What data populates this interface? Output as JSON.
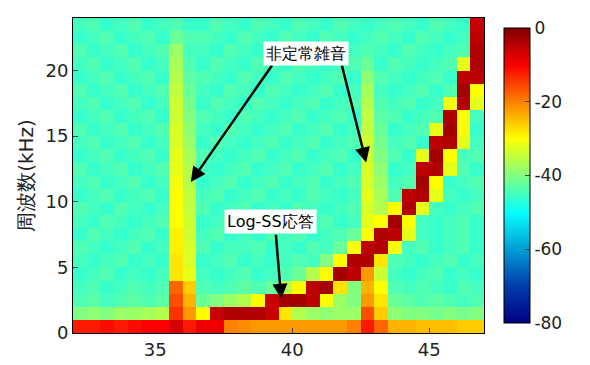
{
  "chart_data": {
    "type": "heatmap",
    "y_label": "周波数(kHz)",
    "xlim": [
      32,
      47
    ],
    "xticks": [
      35,
      40,
      45
    ],
    "ylim": [
      0,
      24
    ],
    "yticks": [
      0,
      5,
      10,
      15,
      20
    ],
    "zlim": [
      -80,
      0
    ],
    "zticks": [
      0,
      -20,
      -40,
      -60,
      -80
    ],
    "x": [
      32.25,
      32.75,
      33.25,
      33.75,
      34.25,
      34.75,
      35.25,
      35.75,
      36.25,
      36.75,
      37.25,
      37.75,
      38.25,
      38.75,
      39.25,
      39.75,
      40.25,
      40.75,
      41.25,
      41.75,
      42.25,
      42.75,
      43.25,
      43.75,
      44.25,
      44.75,
      45.25,
      45.75,
      46.25,
      46.75
    ],
    "y": [
      0.5,
      1.5,
      2.5,
      3.5,
      4.5,
      5.5,
      6.5,
      7.5,
      8.5,
      9.5,
      10.5,
      11.5,
      12.5,
      13.5,
      14.5,
      15.5,
      16.5,
      17.5,
      18.5,
      19.5,
      20.5,
      21.5,
      22.5,
      23.5
    ],
    "z": [
      [
        -12,
        -12,
        -11,
        -12,
        -11,
        -10,
        -10,
        -7,
        -12,
        -9,
        -9,
        -20,
        -21,
        -22,
        -22,
        -22,
        -22,
        -22,
        -22,
        -22,
        -20,
        -12,
        -18,
        -24,
        -24,
        -25,
        -25,
        -25,
        -26,
        -26
      ],
      [
        -40,
        -39,
        -40,
        -38,
        -38,
        -37,
        -36,
        -14,
        -22,
        -30,
        -6,
        -4,
        -4,
        -4,
        -6,
        -28,
        -36,
        -38,
        -39,
        -38,
        -38,
        -16,
        -26,
        -39,
        -40,
        -40,
        -41,
        -40,
        -41,
        -40
      ],
      [
        -44,
        -43,
        -45,
        -44,
        -43,
        -44,
        -43,
        -16,
        -24,
        -42,
        -40,
        -38,
        -36,
        -30,
        -6,
        -3,
        -3,
        -5,
        -30,
        -38,
        -40,
        -22,
        -28,
        -42,
        -43,
        -44,
        -43,
        -44,
        -45,
        -44
      ],
      [
        -45,
        -44,
        -46,
        -45,
        -44,
        -45,
        -44,
        -18,
        -26,
        -44,
        -45,
        -44,
        -43,
        -44,
        -42,
        -36,
        -30,
        -5,
        -3,
        -28,
        -40,
        -24,
        -30,
        -44,
        -45,
        -44,
        -45,
        -46,
        -44,
        -45
      ],
      [
        -46,
        -45,
        -44,
        -46,
        -45,
        -46,
        -45,
        -28,
        -32,
        -45,
        -46,
        -45,
        -44,
        -46,
        -45,
        -44,
        -42,
        -36,
        -30,
        -3,
        -5,
        -22,
        -34,
        -45,
        -46,
        -45,
        -44,
        -46,
        -45,
        -46
      ],
      [
        -45,
        -46,
        -45,
        -44,
        -46,
        -45,
        -46,
        -28,
        -33,
        -46,
        -45,
        -44,
        -46,
        -45,
        -46,
        -45,
        -44,
        -45,
        -40,
        -30,
        -4,
        -4,
        -28,
        -44,
        -45,
        -46,
        -45,
        -44,
        -46,
        -45
      ],
      [
        -44,
        -45,
        -46,
        -45,
        -44,
        -46,
        -45,
        -29,
        -33,
        -44,
        -46,
        -45,
        -45,
        -44,
        -46,
        -45,
        -46,
        -44,
        -45,
        -42,
        -30,
        -5,
        -4,
        -30,
        -45,
        -44,
        -46,
        -45,
        -44,
        -46
      ],
      [
        -46,
        -44,
        -45,
        -46,
        -45,
        -44,
        -46,
        -29,
        -34,
        -45,
        -44,
        -46,
        -45,
        -46,
        -44,
        -45,
        -44,
        -46,
        -45,
        -44,
        -42,
        -30,
        -4,
        -5,
        -32,
        -45,
        -46,
        -45,
        -44,
        -46
      ],
      [
        -45,
        -46,
        -44,
        -45,
        -46,
        -45,
        -44,
        -30,
        -34,
        -46,
        -45,
        -44,
        -46,
        -45,
        -45,
        -44,
        -46,
        -45,
        -44,
        -46,
        -45,
        -32,
        -30,
        -3,
        -30,
        -45,
        -46,
        -45,
        -44,
        -46
      ],
      [
        -44,
        -45,
        -46,
        -44,
        -45,
        -46,
        -45,
        -30,
        -35,
        -44,
        -46,
        -45,
        -44,
        -46,
        -45,
        -46,
        -44,
        -45,
        -46,
        -45,
        -44,
        -33,
        -36,
        -30,
        -4,
        -32,
        -45,
        -46,
        -45,
        -44
      ],
      [
        -46,
        -45,
        -44,
        -46,
        -45,
        -44,
        -46,
        -30,
        -35,
        -45,
        -44,
        -46,
        -45,
        -44,
        -46,
        -45,
        -46,
        -44,
        -45,
        -46,
        -45,
        -32,
        -37,
        -44,
        -5,
        -4,
        -32,
        -45,
        -46,
        -45
      ],
      [
        -45,
        -44,
        -46,
        -45,
        -44,
        -46,
        -45,
        -31,
        -36,
        -46,
        -45,
        -44,
        -46,
        -45,
        -44,
        -46,
        -45,
        -44,
        -46,
        -45,
        -44,
        -33,
        -38,
        -45,
        -44,
        -3,
        -30,
        -46,
        -45,
        -44
      ],
      [
        -44,
        -46,
        -45,
        -44,
        -46,
        -45,
        -44,
        -32,
        -36,
        -45,
        -46,
        -45,
        -44,
        -46,
        -45,
        -44,
        -46,
        -45,
        -44,
        -46,
        -45,
        -33,
        -39,
        -46,
        -45,
        -5,
        -4,
        -32,
        -44,
        -46
      ],
      [
        -46,
        -45,
        -44,
        -46,
        -45,
        -44,
        -46,
        -32,
        -37,
        -44,
        -45,
        -46,
        -45,
        -44,
        -46,
        -45,
        -44,
        -46,
        -45,
        -44,
        -46,
        -34,
        -40,
        -44,
        -46,
        -32,
        -3,
        -30,
        -45,
        -44
      ],
      [
        -45,
        -44,
        -46,
        -45,
        -44,
        -46,
        -45,
        -33,
        -38,
        -46,
        -44,
        -45,
        -46,
        -45,
        -44,
        -46,
        -45,
        -44,
        -46,
        -45,
        -44,
        -34,
        -41,
        -45,
        -44,
        -46,
        -5,
        -4,
        -32,
        -45
      ],
      [
        -44,
        -46,
        -45,
        -44,
        -46,
        -45,
        -44,
        -33,
        -39,
        -45,
        -46,
        -44,
        -45,
        -46,
        -45,
        -44,
        -46,
        -45,
        -44,
        -46,
        -45,
        -35,
        -42,
        -46,
        -45,
        -44,
        -32,
        -3,
        -30,
        -46
      ],
      [
        -46,
        -45,
        -44,
        -46,
        -45,
        -44,
        -46,
        -34,
        -40,
        -44,
        -45,
        -46,
        -44,
        -45,
        -46,
        -45,
        -44,
        -46,
        -45,
        -44,
        -46,
        -35,
        -43,
        -44,
        -46,
        -45,
        -44,
        -4,
        -30,
        -45
      ],
      [
        -45,
        -44,
        -46,
        -45,
        -44,
        -46,
        -45,
        -34,
        -41,
        -46,
        -44,
        -45,
        -46,
        -44,
        -45,
        -46,
        -45,
        -44,
        -46,
        -45,
        -44,
        -36,
        -44,
        -45,
        -44,
        -46,
        -45,
        -31,
        -4,
        -32
      ],
      [
        -44,
        -46,
        -45,
        -44,
        -46,
        -45,
        -44,
        -35,
        -42,
        -45,
        -46,
        -44,
        -45,
        -46,
        -44,
        -45,
        -46,
        -45,
        -44,
        -46,
        -45,
        -37,
        -45,
        -46,
        -45,
        -44,
        -46,
        -44,
        -3,
        -30
      ],
      [
        -46,
        -45,
        -44,
        -46,
        -45,
        -44,
        -46,
        -36,
        -43,
        -44,
        -45,
        -46,
        -44,
        -45,
        -46,
        -44,
        -45,
        -46,
        -45,
        -44,
        -46,
        -39,
        -44,
        -45,
        -46,
        -45,
        -44,
        -46,
        -5,
        -5
      ],
      [
        -45,
        -44,
        -46,
        -45,
        -44,
        -46,
        -45,
        -37,
        -44,
        -46,
        -44,
        -45,
        -46,
        -44,
        -45,
        -46,
        -44,
        -45,
        -46,
        -45,
        -44,
        -42,
        -46,
        -44,
        -45,
        -46,
        -45,
        -44,
        -32,
        -4
      ],
      [
        -44,
        -46,
        -45,
        -44,
        -46,
        -45,
        -44,
        -38,
        -45,
        -45,
        -46,
        -44,
        -45,
        -46,
        -44,
        -45,
        -46,
        -44,
        -45,
        -46,
        -45,
        -44,
        -45,
        -46,
        -44,
        -45,
        -46,
        -45,
        -44,
        -4
      ],
      [
        -46,
        -45,
        -44,
        -46,
        -45,
        -44,
        -46,
        -42,
        -44,
        -44,
        -45,
        -46,
        -44,
        -45,
        -46,
        -44,
        -45,
        -46,
        -44,
        -45,
        -46,
        -45,
        -44,
        -45,
        -46,
        -44,
        -45,
        -46,
        -45,
        -5
      ],
      [
        -45,
        -44,
        -46,
        -45,
        -44,
        -46,
        -45,
        -44,
        -46,
        -46,
        -44,
        -45,
        -46,
        -44,
        -45,
        -46,
        -44,
        -45,
        -46,
        -44,
        -45,
        -46,
        -45,
        -44,
        -45,
        -46,
        -44,
        -45,
        -46,
        -6
      ]
    ],
    "annotations": [
      {
        "text": "非定常雑音",
        "x": 40.5,
        "y": 21.3,
        "arrows": [
          {
            "from": [
              39.3,
              20.5
            ],
            "to": [
              36.3,
              11.5
            ]
          },
          {
            "from": [
              41.8,
              20.5
            ],
            "to": [
              42.7,
              13
            ]
          }
        ]
      },
      {
        "text": "Log-SS応答",
        "x": 39.2,
        "y": 8.5,
        "arrows": [
          {
            "from": [
              39.4,
              7.6
            ],
            "to": [
              39.6,
              2.6
            ]
          }
        ]
      }
    ]
  }
}
